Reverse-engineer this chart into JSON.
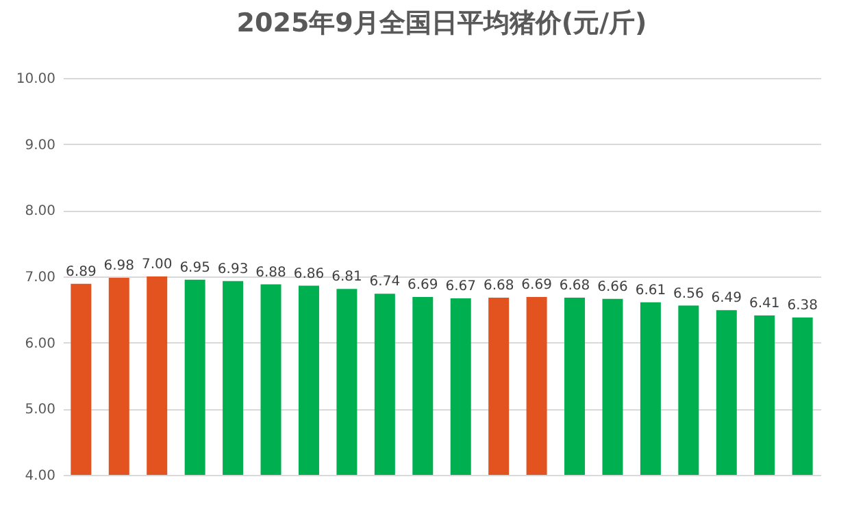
{
  "chart_data": {
    "type": "bar",
    "title": "2025年9月全国日平均猪价(元/斤)",
    "categories": [
      null,
      null,
      null,
      null,
      null,
      null,
      null,
      null,
      null,
      null,
      null,
      null,
      null,
      null,
      null,
      null,
      null,
      null,
      null,
      null
    ],
    "values": [
      6.89,
      6.98,
      7.0,
      6.95,
      6.93,
      6.88,
      6.86,
      6.81,
      6.74,
      6.69,
      6.67,
      6.68,
      6.69,
      6.68,
      6.66,
      6.61,
      6.56,
      6.49,
      6.41,
      6.38
    ],
    "value_labels": [
      "6.89",
      "6.98",
      "7.00",
      "6.95",
      "6.93",
      "6.88",
      "6.86",
      "6.81",
      "6.74",
      "6.69",
      "6.67",
      "6.68",
      "6.69",
      "6.68",
      "6.66",
      "6.61",
      "6.56",
      "6.49",
      "6.41",
      "6.38"
    ],
    "colors": [
      "#e2531f",
      "#e2531f",
      "#e2531f",
      "#00b050",
      "#00b050",
      "#00b050",
      "#00b050",
      "#00b050",
      "#00b050",
      "#00b050",
      "#00b050",
      "#e2531f",
      "#e2531f",
      "#00b050",
      "#00b050",
      "#00b050",
      "#00b050",
      "#00b050",
      "#00b050",
      "#00b050"
    ],
    "ylim": [
      4,
      10
    ],
    "yticks": [
      {
        "value": 4,
        "label": "4.00"
      },
      {
        "value": 5,
        "label": "5.00"
      },
      {
        "value": 6,
        "label": "6.00"
      },
      {
        "value": 7,
        "label": "7.00"
      },
      {
        "value": 8,
        "label": "8.00"
      },
      {
        "value": 9,
        "label": "9.00"
      },
      {
        "value": 10,
        "label": "10.00"
      }
    ],
    "grid": "y",
    "tick_labels": "y"
  }
}
